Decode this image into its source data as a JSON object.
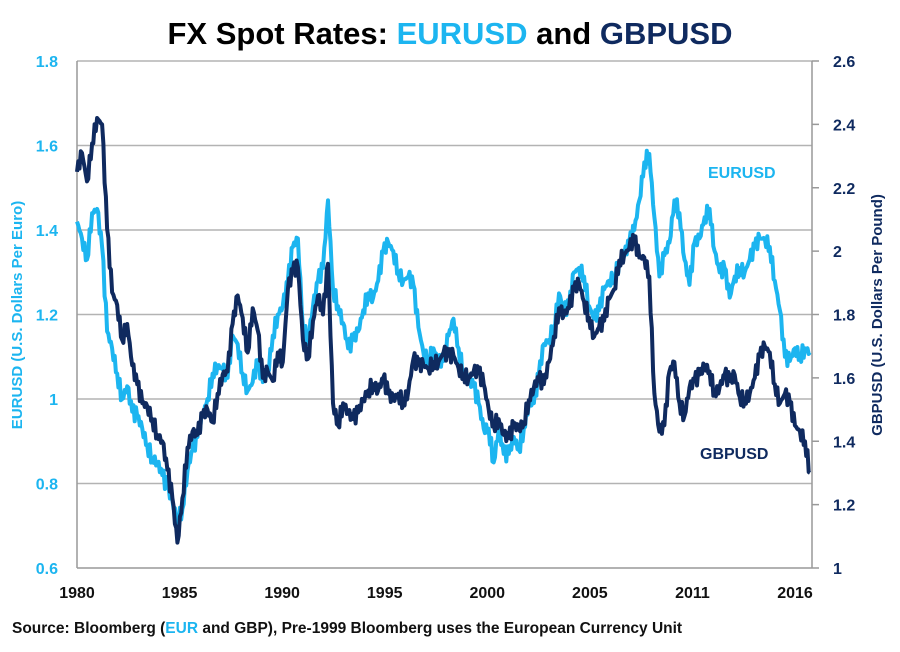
{
  "chart_data": {
    "type": "line",
    "title": {
      "prefix": "FX Spot Rates: ",
      "eur": "EURUSD",
      "mid": " and ",
      "gbp": "GBPUSD"
    },
    "xlabel": "",
    "x_tick_labels": [
      "1980",
      "1985",
      "1990",
      "1995",
      "2000",
      "2005",
      "2011",
      "2016"
    ],
    "x_range": [
      1980,
      2016.6
    ],
    "y_left": {
      "label": "EURUSD (U.S. Dollars Per Euro)",
      "range": [
        0.6,
        1.8
      ],
      "ticks": [
        "0.6",
        "0.8",
        "1",
        "1.2",
        "1.4",
        "1.6",
        "1.8"
      ],
      "tick_values": [
        0.6,
        0.8,
        1.0,
        1.2,
        1.4,
        1.6,
        1.8
      ]
    },
    "y_right": {
      "label": "GBPUSD (U.S. Dollars Per Pound)",
      "range": [
        1.0,
        2.6
      ],
      "ticks": [
        "1",
        "1.2",
        "1.4",
        "1.6",
        "1.8",
        "2",
        "2.2",
        "2.4",
        "2.6"
      ],
      "tick_values": [
        1.0,
        1.2,
        1.4,
        1.6,
        1.8,
        2.0,
        2.2,
        2.4,
        2.6
      ]
    },
    "grid": "horizontal (left axis)",
    "colors": {
      "eur": "#1cb5f0",
      "gbp": "#0f2a5f",
      "grid": "#b3b3b3"
    },
    "series": [
      {
        "name": "EURUSD",
        "axis": "left",
        "annotation": "EURUSD",
        "x": [
          1980.0,
          1980.25,
          1980.5,
          1980.75,
          1981.0,
          1981.25,
          1981.5,
          1981.75,
          1982.0,
          1982.25,
          1982.5,
          1982.75,
          1983.0,
          1983.25,
          1983.5,
          1983.75,
          1984.0,
          1984.25,
          1984.5,
          1984.75,
          1985.0,
          1985.25,
          1985.5,
          1985.75,
          1986.0,
          1986.25,
          1986.5,
          1986.75,
          1987.0,
          1987.25,
          1987.5,
          1987.75,
          1988.0,
          1988.25,
          1988.5,
          1988.75,
          1989.0,
          1989.25,
          1989.5,
          1989.75,
          1990.0,
          1990.25,
          1990.5,
          1990.75,
          1991.0,
          1991.25,
          1991.5,
          1991.75,
          1992.0,
          1992.25,
          1992.5,
          1992.75,
          1993.0,
          1993.25,
          1993.5,
          1993.75,
          1994.0,
          1994.25,
          1994.5,
          1994.75,
          1995.0,
          1995.25,
          1995.5,
          1995.75,
          1996.0,
          1996.25,
          1996.5,
          1996.75,
          1997.0,
          1997.25,
          1997.5,
          1997.75,
          1998.0,
          1998.25,
          1998.5,
          1998.75,
          1999.0,
          1999.25,
          1999.5,
          1999.75,
          2000.0,
          2000.25,
          2000.5,
          2000.75,
          2001.0,
          2001.25,
          2001.5,
          2001.75,
          2002.0,
          2002.25,
          2002.5,
          2002.75,
          2003.0,
          2003.25,
          2003.5,
          2003.75,
          2004.0,
          2004.25,
          2004.5,
          2004.75,
          2005.0,
          2005.25,
          2005.5,
          2005.75,
          2006.0,
          2006.25,
          2006.5,
          2006.75,
          2007.0,
          2007.25,
          2007.5,
          2007.75,
          2008.0,
          2008.25,
          2008.5,
          2008.75,
          2009.0,
          2009.25,
          2009.5,
          2009.75,
          2010.0,
          2010.25,
          2010.5,
          2010.75,
          2011.0,
          2011.25,
          2011.5,
          2011.75,
          2012.0,
          2012.25,
          2012.5,
          2012.75,
          2013.0,
          2013.25,
          2013.5,
          2013.75,
          2014.0,
          2014.25,
          2014.5,
          2014.75,
          2015.0,
          2015.25,
          2015.5,
          2015.75,
          2016.0,
          2016.25,
          2016.5
        ],
        "values": [
          1.42,
          1.38,
          1.33,
          1.44,
          1.45,
          1.36,
          1.16,
          1.12,
          1.06,
          1.0,
          1.03,
          0.97,
          0.96,
          0.93,
          0.89,
          0.86,
          0.85,
          0.82,
          0.79,
          0.76,
          0.71,
          0.74,
          0.83,
          0.88,
          0.91,
          0.96,
          1.0,
          1.06,
          1.08,
          1.07,
          1.05,
          1.15,
          1.13,
          1.06,
          1.02,
          1.04,
          1.09,
          1.04,
          1.06,
          1.15,
          1.2,
          1.22,
          1.28,
          1.36,
          1.38,
          1.17,
          1.14,
          1.22,
          1.28,
          1.31,
          1.47,
          1.26,
          1.22,
          1.18,
          1.12,
          1.14,
          1.16,
          1.21,
          1.25,
          1.24,
          1.28,
          1.35,
          1.37,
          1.35,
          1.3,
          1.28,
          1.29,
          1.27,
          1.17,
          1.11,
          1.09,
          1.12,
          1.09,
          1.09,
          1.15,
          1.19,
          1.12,
          1.06,
          1.05,
          1.03,
          0.99,
          0.93,
          0.93,
          0.85,
          0.93,
          0.87,
          0.87,
          0.91,
          0.88,
          0.93,
          0.99,
          0.99,
          1.06,
          1.13,
          1.14,
          1.17,
          1.25,
          1.21,
          1.22,
          1.3,
          1.31,
          1.29,
          1.22,
          1.19,
          1.21,
          1.26,
          1.28,
          1.29,
          1.32,
          1.34,
          1.37,
          1.4,
          1.47,
          1.56,
          1.58,
          1.43,
          1.29,
          1.34,
          1.37,
          1.47,
          1.44,
          1.33,
          1.27,
          1.37,
          1.38,
          1.43,
          1.45,
          1.35,
          1.3,
          1.31,
          1.24,
          1.29,
          1.31,
          1.3,
          1.33,
          1.36,
          1.38,
          1.38,
          1.36,
          1.28,
          1.21,
          1.1,
          1.09,
          1.12,
          1.1,
          1.12,
          1.11
        ]
      },
      {
        "name": "GBPUSD",
        "axis": "right",
        "annotation": "GBPUSD",
        "x": [
          1980.0,
          1980.25,
          1980.5,
          1980.75,
          1981.0,
          1981.25,
          1981.5,
          1981.75,
          1982.0,
          1982.25,
          1982.5,
          1982.75,
          1983.0,
          1983.25,
          1983.5,
          1983.75,
          1984.0,
          1984.25,
          1984.5,
          1984.75,
          1985.0,
          1985.25,
          1985.5,
          1985.75,
          1986.0,
          1986.25,
          1986.5,
          1986.75,
          1987.0,
          1987.25,
          1987.5,
          1987.75,
          1988.0,
          1988.25,
          1988.5,
          1988.75,
          1989.0,
          1989.25,
          1989.5,
          1989.75,
          1990.0,
          1990.25,
          1990.5,
          1990.75,
          1991.0,
          1991.25,
          1991.5,
          1991.75,
          1992.0,
          1992.25,
          1992.5,
          1992.75,
          1993.0,
          1993.25,
          1993.5,
          1993.75,
          1994.0,
          1994.25,
          1994.5,
          1994.75,
          1995.0,
          1995.25,
          1995.5,
          1995.75,
          1996.0,
          1996.25,
          1996.5,
          1996.75,
          1997.0,
          1997.25,
          1997.5,
          1997.75,
          1998.0,
          1998.25,
          1998.5,
          1998.75,
          1999.0,
          1999.25,
          1999.5,
          1999.75,
          2000.0,
          2000.25,
          2000.5,
          2000.75,
          2001.0,
          2001.25,
          2001.5,
          2001.75,
          2002.0,
          2002.25,
          2002.5,
          2002.75,
          2003.0,
          2003.25,
          2003.5,
          2003.75,
          2004.0,
          2004.25,
          2004.5,
          2004.75,
          2005.0,
          2005.25,
          2005.5,
          2005.75,
          2006.0,
          2006.25,
          2006.5,
          2006.75,
          2007.0,
          2007.25,
          2007.5,
          2007.75,
          2008.0,
          2008.25,
          2008.5,
          2008.75,
          2009.0,
          2009.25,
          2009.5,
          2009.75,
          2010.0,
          2010.25,
          2010.5,
          2010.75,
          2011.0,
          2011.25,
          2011.5,
          2011.75,
          2012.0,
          2012.25,
          2012.5,
          2012.75,
          2013.0,
          2013.25,
          2013.5,
          2013.75,
          2014.0,
          2014.25,
          2014.5,
          2014.75,
          2015.0,
          2015.25,
          2015.5,
          2015.75,
          2016.0,
          2016.25,
          2016.5
        ],
        "values": [
          2.25,
          2.31,
          2.22,
          2.34,
          2.42,
          2.4,
          2.07,
          1.87,
          1.83,
          1.72,
          1.77,
          1.64,
          1.58,
          1.52,
          1.51,
          1.47,
          1.42,
          1.4,
          1.31,
          1.22,
          1.08,
          1.22,
          1.38,
          1.43,
          1.42,
          1.48,
          1.5,
          1.46,
          1.55,
          1.61,
          1.62,
          1.77,
          1.86,
          1.79,
          1.68,
          1.82,
          1.75,
          1.6,
          1.62,
          1.59,
          1.68,
          1.65,
          1.88,
          1.94,
          1.95,
          1.72,
          1.66,
          1.78,
          1.86,
          1.8,
          1.96,
          1.52,
          1.45,
          1.52,
          1.49,
          1.47,
          1.49,
          1.53,
          1.56,
          1.58,
          1.56,
          1.6,
          1.55,
          1.53,
          1.55,
          1.52,
          1.56,
          1.66,
          1.64,
          1.64,
          1.63,
          1.65,
          1.65,
          1.68,
          1.67,
          1.67,
          1.63,
          1.61,
          1.6,
          1.62,
          1.62,
          1.58,
          1.5,
          1.45,
          1.47,
          1.42,
          1.41,
          1.45,
          1.44,
          1.46,
          1.53,
          1.57,
          1.6,
          1.58,
          1.65,
          1.73,
          1.82,
          1.8,
          1.82,
          1.88,
          1.9,
          1.84,
          1.79,
          1.73,
          1.76,
          1.78,
          1.85,
          1.88,
          1.97,
          1.99,
          2.01,
          2.04,
          1.98,
          1.98,
          1.92,
          1.55,
          1.43,
          1.45,
          1.62,
          1.65,
          1.52,
          1.48,
          1.57,
          1.59,
          1.61,
          1.64,
          1.62,
          1.55,
          1.57,
          1.61,
          1.59,
          1.61,
          1.54,
          1.53,
          1.55,
          1.6,
          1.67,
          1.7,
          1.68,
          1.58,
          1.52,
          1.55,
          1.52,
          1.45,
          1.43,
          1.4,
          1.3
        ]
      }
    ]
  },
  "source": {
    "prefix": "Source: Bloomberg (",
    "eur": "EUR",
    "suffix": " and GBP), Pre-1999 Bloomberg  uses the European  Currency  Unit"
  }
}
